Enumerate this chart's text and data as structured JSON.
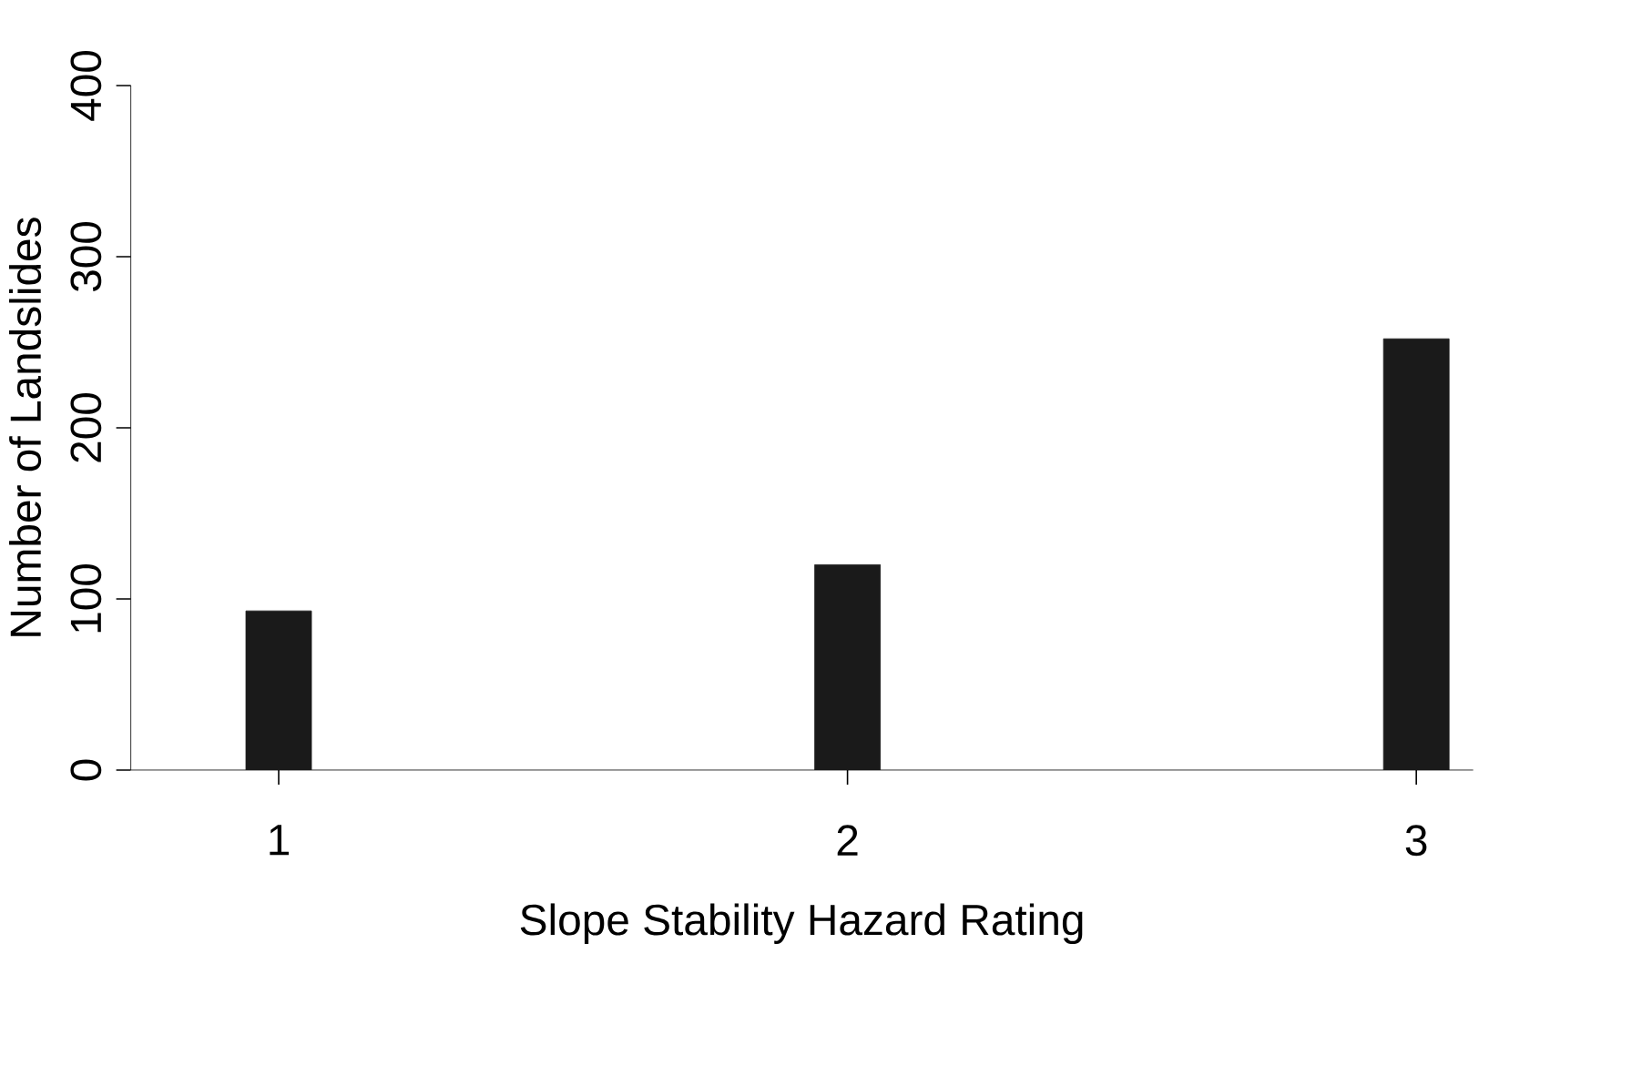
{
  "chart_data": {
    "type": "bar",
    "xlabel": "Slope Stability Hazard Rating",
    "ylabel": "Number of Landslides",
    "categories": [
      "1",
      "2",
      "3"
    ],
    "values": [
      93,
      120,
      252
    ],
    "color": "#1a1a1a",
    "ylim": [
      0,
      400
    ],
    "yticks": [
      0,
      100,
      200,
      300,
      400
    ],
    "grid": false
  }
}
